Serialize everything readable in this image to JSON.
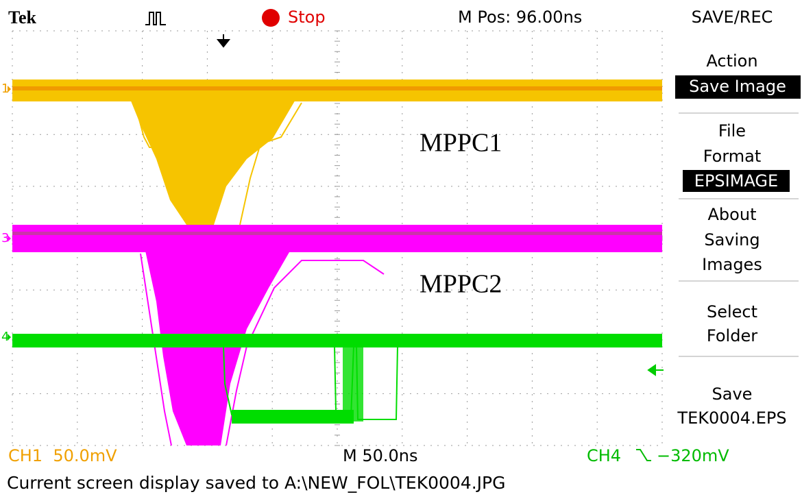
{
  "header": {
    "brand": "Tek",
    "run_state": "Stop",
    "position": "M Pos: 96.00ns",
    "menu_title": "SAVE/REC"
  },
  "menu": {
    "action": [
      "Action",
      "Save Image"
    ],
    "file_format": [
      "File",
      "Format",
      "EPSIMAGE"
    ],
    "about": [
      "About",
      "Saving",
      "Images"
    ],
    "select_folder": [
      "Select",
      "Folder"
    ],
    "save": [
      "Save",
      "TEK0004.EPS"
    ]
  },
  "channel_markers": [
    "1",
    "3",
    "4"
  ],
  "annotations": [
    "MPPC1",
    "MPPC2"
  ],
  "footer": {
    "ch1": "CH1  50.0mV",
    "timebase": "M 50.0ns",
    "ch4": "CH4",
    "ch4_level": "−320mV"
  },
  "status": "Current screen display saved to A:\\NEW_FOL\\TEK0004.JPG"
}
